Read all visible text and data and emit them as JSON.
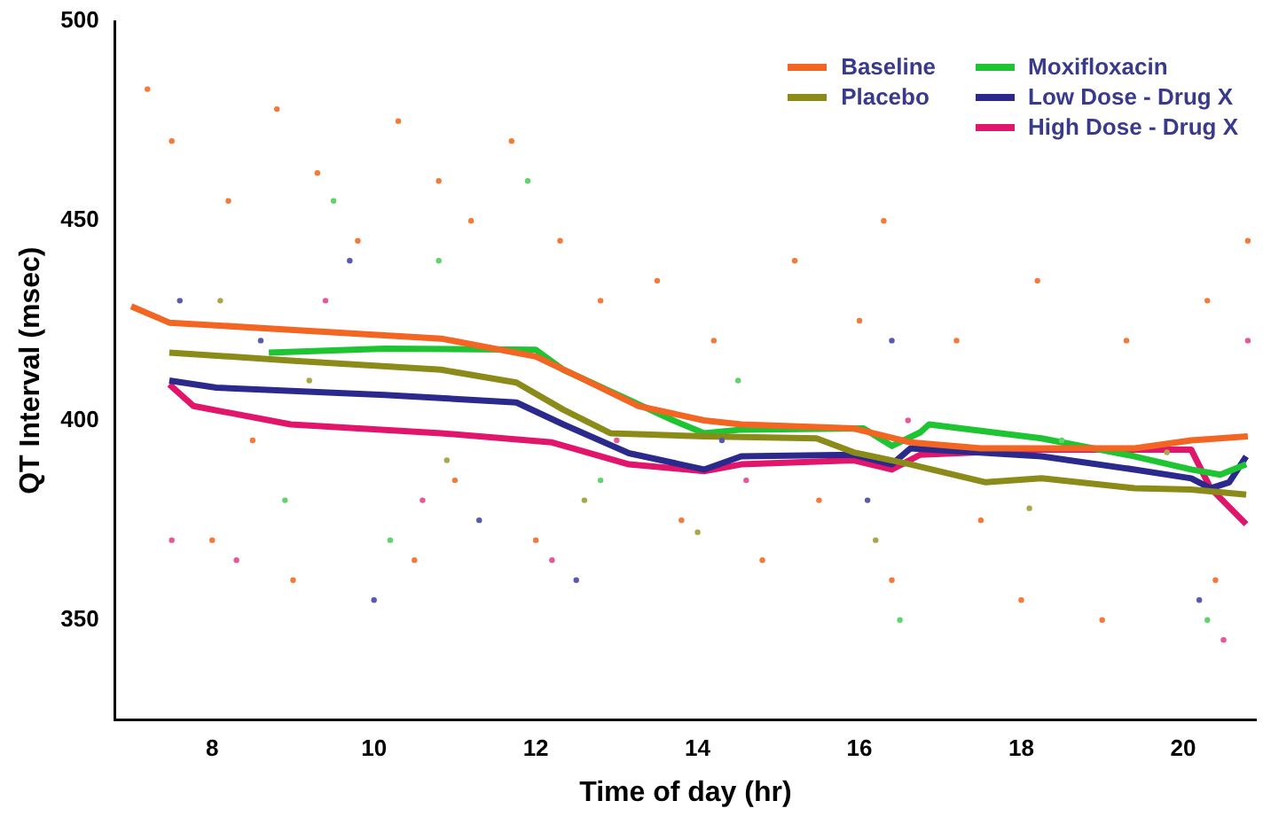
{
  "chart_data": {
    "type": "line",
    "xlabel": "Time of day (hr)",
    "ylabel": "QT Interval (msec)",
    "xlim": [
      6.8,
      20.9
    ],
    "ylim": [
      325,
      500
    ],
    "xticks": [
      8,
      10,
      12,
      14,
      16,
      18,
      20
    ],
    "yticks": [
      350,
      400,
      450,
      500
    ],
    "grid": false,
    "legend": "top right",
    "line_style": "solid",
    "series": [
      {
        "type": "scatter",
        "marker": "circle",
        "color": "#f47a3a",
        "x": [
          7.2,
          7.5,
          8.2,
          8.8,
          9.3,
          9.8,
          10.3,
          10.8,
          11.2,
          11.7,
          12.3,
          12.8,
          13.5,
          14.2,
          15.2,
          16.0,
          16.3,
          17.2,
          18.2,
          19.3,
          20.3,
          20.8,
          8.0,
          9.0,
          10.5,
          12.0,
          13.8,
          14.8,
          16.4,
          18.0,
          19.0,
          20.4,
          15.5,
          17.5,
          8.5,
          11.0
        ],
        "values": [
          483,
          470,
          455,
          478,
          462,
          445,
          475,
          460,
          450,
          470,
          445,
          430,
          435,
          420,
          440,
          425,
          450,
          420,
          435,
          420,
          430,
          445,
          370,
          360,
          365,
          370,
          375,
          365,
          360,
          355,
          350,
          360,
          380,
          375,
          395,
          385
        ]
      },
      {
        "type": "scatter",
        "marker": "circle",
        "color": "#5fd46c",
        "x": [
          9.5,
          10.8,
          11.9,
          8.9,
          10.2,
          12.8,
          16.5,
          20.3,
          14.5,
          18.5
        ],
        "values": [
          455,
          440,
          460,
          380,
          370,
          385,
          350,
          350,
          410,
          395
        ]
      },
      {
        "type": "scatter",
        "marker": "circle",
        "color": "#5a59b0",
        "x": [
          7.6,
          8.6,
          9.7,
          11.3,
          12.5,
          14.3,
          16.4,
          20.2,
          10.0,
          16.1
        ],
        "values": [
          430,
          420,
          440,
          375,
          360,
          395,
          420,
          355,
          355,
          380
        ]
      },
      {
        "type": "scatter",
        "marker": "circle",
        "color": "#e8579a",
        "x": [
          7.5,
          8.3,
          9.4,
          10.6,
          12.2,
          14.6,
          16.6,
          20.5,
          13.0,
          20.8
        ],
        "values": [
          370,
          365,
          430,
          380,
          365,
          385,
          400,
          345,
          395,
          420
        ]
      },
      {
        "type": "scatter",
        "marker": "circle",
        "color": "#a8a84a",
        "x": [
          8.1,
          9.2,
          10.9,
          12.6,
          14.0,
          16.2,
          18.1,
          19.8
        ],
        "values": [
          430,
          410,
          390,
          380,
          372,
          370,
          378,
          392
        ]
      },
      {
        "name": "Baseline",
        "color": "#f26522",
        "x": [
          7.0,
          7.47,
          8.97,
          10.83,
          12.0,
          12.57,
          13.27,
          14.08,
          14.54,
          15.93,
          16.63,
          17.5,
          19.4,
          20.1,
          20.8
        ],
        "values": [
          428.6,
          424.5,
          422.7,
          420.5,
          416,
          410.5,
          403.6,
          400,
          399,
          398,
          394.5,
          393,
          393,
          395,
          396
        ]
      },
      {
        "name": "Placebo",
        "color": "#8b8b1a",
        "x": [
          7.47,
          8.97,
          10.83,
          11.76,
          12.34,
          12.92,
          14.08,
          15.47,
          15.93,
          16.63,
          17.56,
          18.25,
          19.4,
          20.1,
          20.78
        ],
        "values": [
          417,
          415,
          412.7,
          409.5,
          402.7,
          396.8,
          396,
          395.5,
          392,
          389,
          384.5,
          385.5,
          383,
          382.7,
          381.4
        ]
      },
      {
        "name": "Moxifloxacin",
        "color": "#1fc433",
        "x": [
          8.7,
          10.13,
          12.0,
          12.34,
          13.7,
          14.08,
          14.54,
          16.05,
          16.4,
          16.75,
          16.86,
          18.25,
          19.4,
          20.1,
          20.46,
          20.78
        ],
        "values": [
          417,
          418,
          417.7,
          412.7,
          400,
          396.8,
          397.7,
          398,
          393.6,
          397,
          399,
          395.5,
          391,
          387.7,
          386.4,
          389
        ]
      },
      {
        "name": "Low Dose - Drug X",
        "color": "#2b2a8c",
        "x": [
          7.47,
          8.05,
          10.13,
          11.76,
          12.34,
          13.15,
          14.08,
          14.54,
          15.93,
          16.4,
          16.63,
          18.25,
          19.4,
          20.1,
          20.34,
          20.57,
          20.78
        ],
        "values": [
          410,
          408.2,
          406.4,
          404.5,
          399,
          391.8,
          387.7,
          391,
          391.4,
          389,
          393,
          391,
          387.7,
          385.5,
          383,
          384.5,
          391
        ]
      },
      {
        "name": "High Dose - Drug X",
        "color": "#e0156b",
        "x": [
          7.47,
          7.77,
          8.97,
          10.83,
          12.2,
          13.15,
          14.08,
          14.54,
          15.93,
          16.4,
          16.75,
          18.25,
          20.1,
          20.34,
          20.78
        ],
        "values": [
          409,
          403.6,
          399,
          396.8,
          394.5,
          389,
          387.3,
          389,
          390,
          387.7,
          391.4,
          392.7,
          392.7,
          383,
          374
        ]
      }
    ]
  }
}
